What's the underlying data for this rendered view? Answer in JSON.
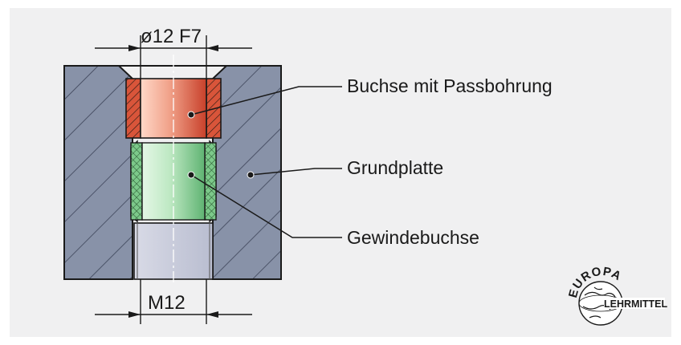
{
  "dimensions": {
    "top": "ø12 F7",
    "bottom": "M12"
  },
  "labels": {
    "bushing": "Buchse mit Passbohrung",
    "base_plate": "Grundplatte",
    "threaded_bushing": "Gewindebuchse"
  },
  "logo": {
    "top_text": "EUROPA",
    "bottom_text": "LEHRMITTEL"
  },
  "colors": {
    "background": "#f0f0f1",
    "base_plate": "#8892a8",
    "bushing_red": "#d9553a",
    "bushing_green": "#7cc98a",
    "bore": "#c9ccdc"
  }
}
